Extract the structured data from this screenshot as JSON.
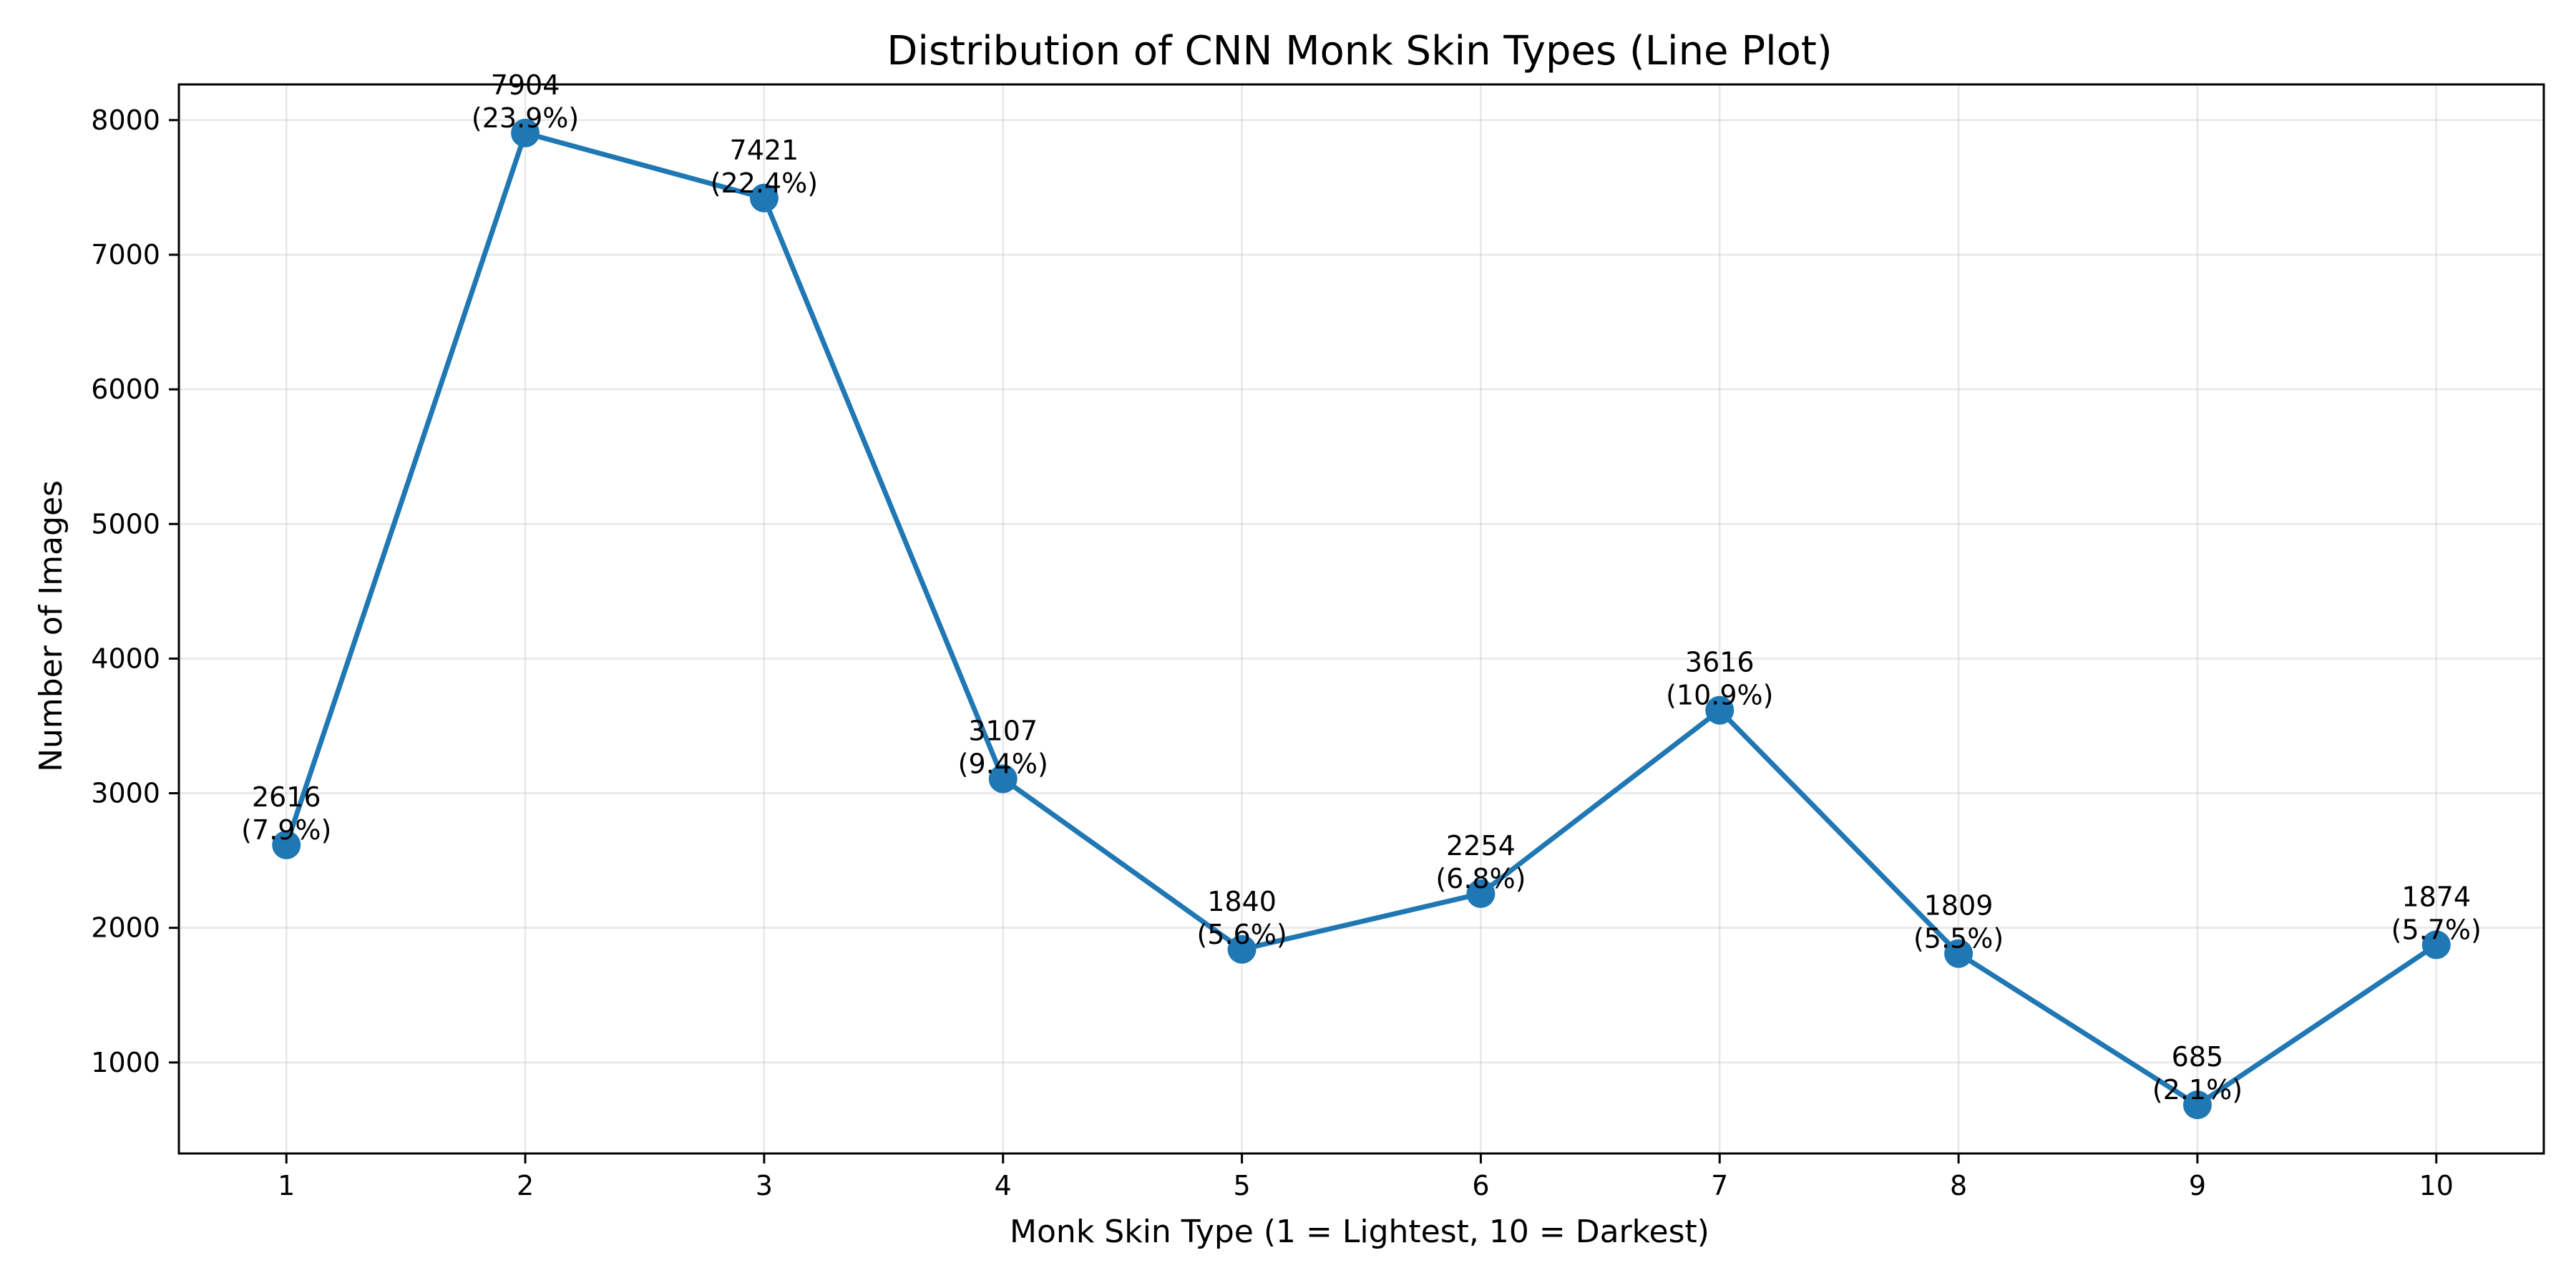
{
  "chart_data": {
    "type": "line",
    "title": "Distribution of CNN Monk Skin Types (Line Plot)",
    "xlabel": "Monk Skin Type (1 = Lightest, 10 = Darkest)",
    "ylabel": "Number of Images",
    "x": [
      1,
      2,
      3,
      4,
      5,
      6,
      7,
      8,
      9,
      10
    ],
    "values": [
      2616,
      7904,
      7421,
      3107,
      1840,
      2254,
      3616,
      1809,
      685,
      1874
    ],
    "data_labels": [
      "2616\n(7.9%)",
      "7904\n(23.9%)",
      "7421\n(22.4%)",
      "3107\n(9.4%)",
      "1840\n(5.6%)",
      "2254\n(6.8%)",
      "3616\n(10.9%)",
      "1809\n(5.5%)",
      "685\n(2.1%)",
      "1874\n(5.7%)"
    ],
    "xticks": [
      "1",
      "2",
      "3",
      "4",
      "5",
      "6",
      "7",
      "8",
      "9",
      "10"
    ],
    "yticks": [
      1000,
      2000,
      3000,
      4000,
      5000,
      6000,
      7000,
      8000
    ],
    "xlim": [
      0.55,
      10.45
    ],
    "ylim": [
      324,
      8265
    ],
    "grid": true,
    "line_color": "#1f77b4",
    "marker": "circle"
  }
}
